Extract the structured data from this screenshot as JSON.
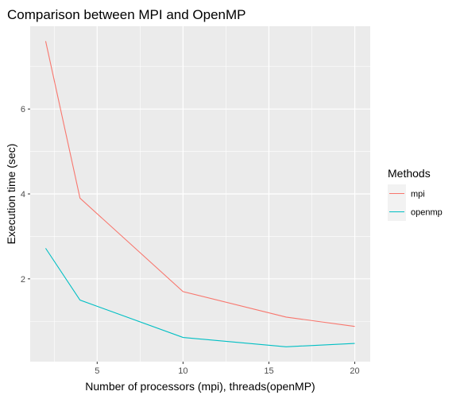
{
  "chart_data": {
    "type": "line",
    "title": "Comparison between MPI and OpenMP",
    "xlabel": "Number of processors (mpi), threads(openMP)",
    "ylabel": "Execution time (sec)",
    "xlim": [
      1.1,
      20.9
    ],
    "ylim": [
      0.05,
      7.95
    ],
    "x_ticks": [
      5,
      10,
      15,
      20
    ],
    "x_tick_labels": [
      "5",
      "10",
      "15",
      "20"
    ],
    "y_ticks": [
      2,
      4,
      6
    ],
    "y_tick_labels": [
      "2",
      "4",
      "6"
    ],
    "grid": true,
    "legend": {
      "title": "Methods",
      "position": "right"
    },
    "series": [
      {
        "name": "mpi",
        "color": "#F8766D",
        "x": [
          2,
          4,
          10,
          16,
          20
        ],
        "y": [
          7.6,
          3.9,
          1.7,
          1.1,
          0.88
        ]
      },
      {
        "name": "openmp",
        "color": "#00BFC4",
        "x": [
          2,
          4,
          10,
          16,
          20
        ],
        "y": [
          2.72,
          1.5,
          0.62,
          0.4,
          0.48
        ]
      }
    ]
  },
  "colors": {
    "panel_background": "#EBEBEB",
    "grid_major": "#FFFFFF",
    "legend_key_background": "#F2F2F2"
  }
}
